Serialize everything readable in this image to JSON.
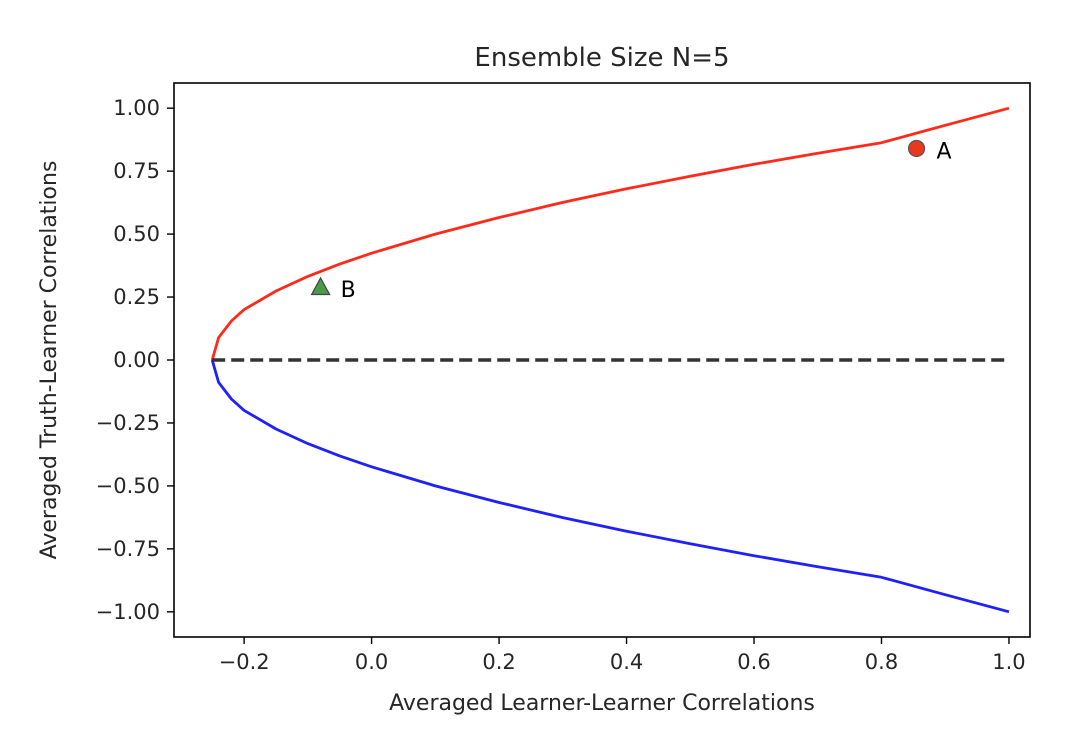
{
  "chart_data": {
    "type": "line",
    "title": "Ensemble Size N=5",
    "xlabel": "Averaged Learner-Learner Correlations",
    "ylabel": "Averaged Truth-Learner Correlations",
    "xlim": [
      -0.31,
      1.033
    ],
    "ylim": [
      -1.1,
      1.1
    ],
    "x_ticks": [
      -0.2,
      0.0,
      0.2,
      0.4,
      0.6,
      0.8,
      1.0
    ],
    "x_tick_labels": [
      "−0.2",
      "0.0",
      "0.2",
      "0.4",
      "0.6",
      "0.8",
      "1.0"
    ],
    "y_ticks": [
      1.0,
      0.75,
      0.5,
      0.25,
      0.0,
      -0.25,
      -0.5,
      -0.75,
      -1.0
    ],
    "y_tick_labels": [
      "1.00",
      "0.75",
      "0.50",
      "0.25",
      "0.00",
      "−0.25",
      "−0.50",
      "−0.75",
      "−1.00"
    ],
    "grid": false,
    "series": [
      {
        "color": "#ff2a1a",
        "style": "solid",
        "x": [
          -0.25,
          -0.24,
          -0.22,
          -0.2,
          -0.15,
          -0.1,
          -0.05,
          0.0,
          0.1,
          0.2,
          0.3,
          0.4,
          0.5,
          0.6,
          0.7,
          0.8,
          0.9,
          1.0
        ],
        "y": [
          0.0,
          0.089,
          0.155,
          0.2,
          0.274,
          0.332,
          0.381,
          0.424,
          0.5,
          0.566,
          0.626,
          0.68,
          0.73,
          0.777,
          0.821,
          0.863,
          0.932,
          1.0
        ]
      },
      {
        "color": "#1f1fff",
        "style": "solid",
        "x": [
          -0.25,
          -0.24,
          -0.22,
          -0.2,
          -0.15,
          -0.1,
          -0.05,
          0.0,
          0.1,
          0.2,
          0.3,
          0.4,
          0.5,
          0.6,
          0.7,
          0.8,
          0.9,
          1.0
        ],
        "y": [
          0.0,
          -0.089,
          -0.155,
          -0.2,
          -0.274,
          -0.332,
          -0.381,
          -0.424,
          -0.5,
          -0.566,
          -0.626,
          -0.68,
          -0.73,
          -0.777,
          -0.821,
          -0.863,
          -0.932,
          -1.0
        ]
      },
      {
        "color": "#333333",
        "style": "dashed",
        "x": [
          -0.25,
          1.0
        ],
        "y": [
          0.0,
          0.0
        ]
      }
    ],
    "points": [
      {
        "label": "A",
        "x": 0.855,
        "y": 0.84,
        "marker": "circle",
        "color": "#e8391f"
      },
      {
        "label": "B",
        "x": -0.08,
        "y": 0.29,
        "marker": "triangle",
        "color": "#4a9a4a"
      }
    ]
  }
}
